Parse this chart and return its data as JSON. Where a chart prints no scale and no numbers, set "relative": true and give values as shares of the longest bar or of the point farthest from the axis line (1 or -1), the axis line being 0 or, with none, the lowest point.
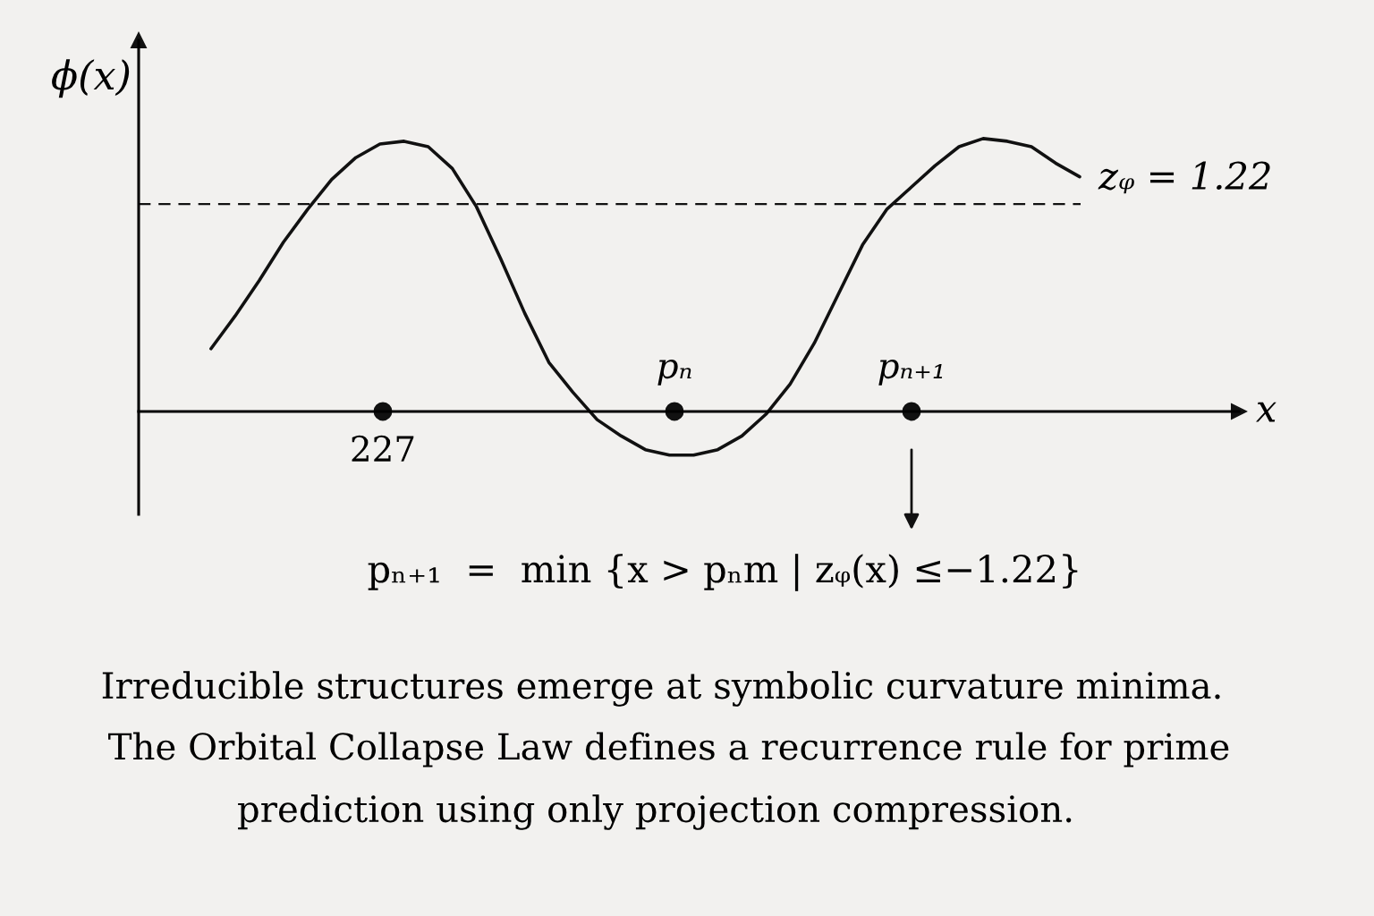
{
  "chart_data": {
    "type": "line",
    "relative": true,
    "xlabel": "x",
    "ylabel": "ϕ(x)",
    "categories": [
      null,
      null,
      null,
      null,
      null,
      null,
      null,
      null,
      null,
      null,
      null,
      null,
      null,
      null,
      null,
      null,
      null,
      null,
      null,
      null,
      null,
      null,
      null,
      null,
      null,
      null,
      null,
      null,
      null,
      null,
      null,
      null,
      null,
      null,
      null,
      null,
      null
    ],
    "series": [
      {
        "color": "#111111",
        "values": [
          0.23,
          0.35,
          0.48,
          0.62,
          0.74,
          0.85,
          0.93,
          0.98,
          0.99,
          0.97,
          0.89,
          0.75,
          0.56,
          0.36,
          0.18,
          0.07,
          -0.03,
          -0.09,
          -0.14,
          -0.16,
          -0.16,
          -0.14,
          -0.09,
          -0.01,
          0.1,
          0.25,
          0.43,
          0.61,
          0.74,
          0.82,
          0.9,
          0.97,
          1.0,
          0.99,
          0.97,
          0.91,
          0.86
        ]
      }
    ],
    "ref_lines": [
      {
        "axis": "y",
        "value": 0.76,
        "color": "#111111",
        "line_style": "dashed"
      }
    ],
    "annotations": [
      "zᵩ = 1.22",
      "227",
      "pₙ",
      "pₙ₊₁",
      "pₙ₊₁  =  min {x > pₙm | zᵩ(x) ≤−1.22}",
      "Irreducible structures emerge at symbolic curvature minima.",
      "The Orbital Collapse Law defines a recurrence rule for prime",
      "prediction using only projection compression."
    ],
    "grid": false,
    "legend": false
  }
}
